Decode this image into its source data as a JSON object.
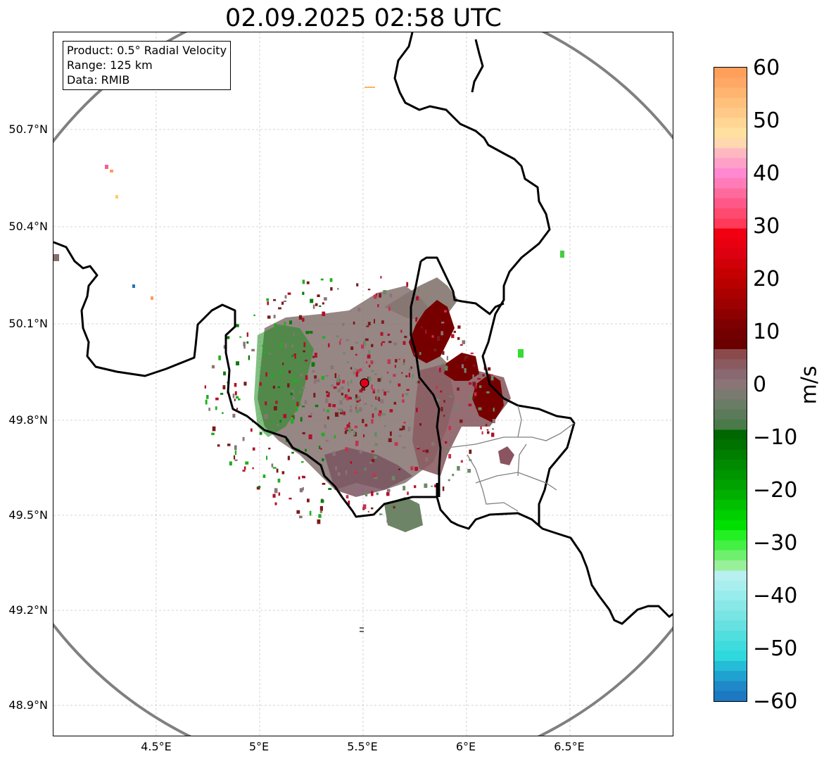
{
  "title": "02.09.2025 02:58 UTC",
  "info": {
    "product": "Product: 0.5° Radial Velocity",
    "range": "Range: 125 km",
    "data": "Data: RMIB"
  },
  "axes": {
    "lat_labels": [
      "50.7°N",
      "50.4°N",
      "50.1°N",
      "49.8°N",
      "49.5°N",
      "49.2°N",
      "48.9°N"
    ],
    "lon_labels": [
      "4.5°E",
      "5°E",
      "5.5°E",
      "6°E",
      "6.5°E"
    ],
    "lat_range": [
      48.8,
      51.0
    ],
    "lon_range": [
      4.0,
      7.0
    ]
  },
  "colorbar": {
    "label": "m/s",
    "range": [
      -60,
      60
    ],
    "ticks": [
      "60",
      "50",
      "40",
      "30",
      "20",
      "10",
      "0",
      "−10",
      "−20",
      "−30",
      "−40",
      "−50",
      "−60"
    ]
  },
  "radar_site": {
    "lon": 5.505,
    "lat": 49.915,
    "color": "#e3001b"
  },
  "colors": {
    "range_ring": "#808080",
    "approaching": "#1fa31f",
    "receding": "#7a0000",
    "near_zero": "#8a7476"
  }
}
